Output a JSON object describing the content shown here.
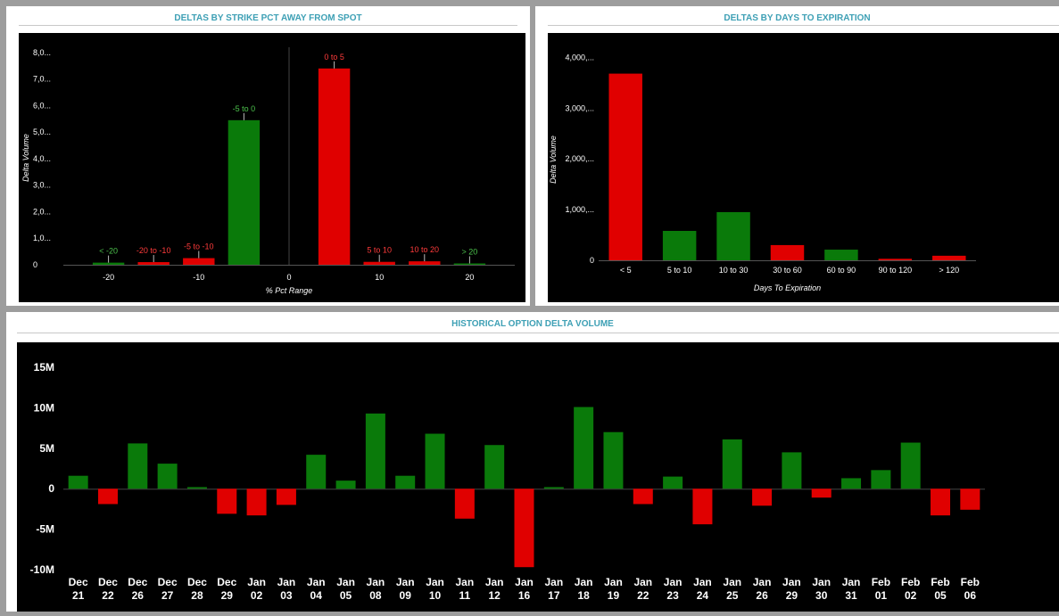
{
  "panels": {
    "strike": {
      "title": "DELTAS BY STRIKE PCT AWAY FROM SPOT"
    },
    "expiry": {
      "title": "DELTAS BY DAYS TO EXPIRATION"
    },
    "history": {
      "title": "HISTORICAL OPTION DELTA VOLUME"
    }
  },
  "colors": {
    "positive": "#0a7a0a",
    "negative": "#e00000",
    "positive_label": "#4cc24c",
    "negative_label": "#ff3b3b",
    "title": "#3ea0b5"
  },
  "chart_data": [
    {
      "type": "bar",
      "title": "DELTAS BY STRIKE PCT AWAY FROM SPOT",
      "xlabel": "% Pct Range",
      "ylabel": "Delta Volume",
      "xlim": [
        -25,
        25
      ],
      "ylim": [
        0,
        8200
      ],
      "y_ticks": [
        0,
        1000,
        2000,
        3000,
        4000,
        5000,
        6000,
        7000,
        8000
      ],
      "y_tick_labels": [
        "0",
        "1,0...",
        "2,0...",
        "3,0...",
        "4,0...",
        "5,0...",
        "6,0...",
        "7,0...",
        "8,0..."
      ],
      "x_ticks": [
        -20,
        -10,
        0,
        10,
        20
      ],
      "x_tick_labels": [
        "-20",
        "-10",
        "0",
        "10",
        "20"
      ],
      "bars": [
        {
          "label": "< -20",
          "center": -20,
          "value": 80,
          "sign": "positive"
        },
        {
          "label": "-20 to -10",
          "center": -15,
          "value": 100,
          "sign": "negative"
        },
        {
          "label": "-5 to -10",
          "center": -10,
          "value": 250,
          "sign": "negative"
        },
        {
          "label": "-5 to 0",
          "center": -5,
          "value": 5450,
          "sign": "positive"
        },
        {
          "label": "0 to 5",
          "center": 5,
          "value": 7400,
          "sign": "negative"
        },
        {
          "label": "5 to 10",
          "center": 10,
          "value": 110,
          "sign": "negative"
        },
        {
          "label": "10 to 20",
          "center": 15,
          "value": 130,
          "sign": "negative"
        },
        {
          "label": "> 20",
          "center": 20,
          "value": 40,
          "sign": "positive"
        }
      ],
      "grid": false
    },
    {
      "type": "bar",
      "title": "DELTAS BY DAYS TO EXPIRATION",
      "xlabel": "Days To Expiration",
      "ylabel": "Delta Volume",
      "ylim": [
        0,
        4200
      ],
      "y_ticks": [
        0,
        1000,
        2000,
        3000,
        4000
      ],
      "y_tick_labels": [
        "0",
        "1,000,...",
        "2,000,...",
        "3,000,...",
        "4,000,..."
      ],
      "categories": [
        "< 5",
        "5 to 10",
        "10 to 30",
        "30 to 60",
        "60 to 90",
        "90 to 120",
        "> 120"
      ],
      "values": [
        3680,
        580,
        950,
        300,
        210,
        30,
        90
      ],
      "signs": [
        "negative",
        "positive",
        "positive",
        "negative",
        "positive",
        "negative",
        "negative"
      ],
      "grid": false
    },
    {
      "type": "bar",
      "title": "HISTORICAL OPTION DELTA VOLUME",
      "ylim": [
        -11,
        17
      ],
      "y_ticks": [
        -10,
        -5,
        0,
        5,
        10,
        15
      ],
      "y_tick_labels": [
        "-10M",
        "-5M",
        "0",
        "5M",
        "10M",
        "15M"
      ],
      "categories": [
        [
          "Dec",
          "21"
        ],
        [
          "Dec",
          "22"
        ],
        [
          "Dec",
          "26"
        ],
        [
          "Dec",
          "27"
        ],
        [
          "Dec",
          "28"
        ],
        [
          "Dec",
          "29"
        ],
        [
          "Jan",
          "02"
        ],
        [
          "Jan",
          "03"
        ],
        [
          "Jan",
          "04"
        ],
        [
          "Jan",
          "05"
        ],
        [
          "Jan",
          "08"
        ],
        [
          "Jan",
          "09"
        ],
        [
          "Jan",
          "10"
        ],
        [
          "Jan",
          "11"
        ],
        [
          "Jan",
          "12"
        ],
        [
          "Jan",
          "16"
        ],
        [
          "Jan",
          "17"
        ],
        [
          "Jan",
          "18"
        ],
        [
          "Jan",
          "19"
        ],
        [
          "Jan",
          "22"
        ],
        [
          "Jan",
          "23"
        ],
        [
          "Jan",
          "24"
        ],
        [
          "Jan",
          "25"
        ],
        [
          "Jan",
          "26"
        ],
        [
          "Jan",
          "29"
        ],
        [
          "Jan",
          "30"
        ],
        [
          "Jan",
          "31"
        ],
        [
          "Feb",
          "01"
        ],
        [
          "Feb",
          "02"
        ],
        [
          "Feb",
          "05"
        ],
        [
          "Feb",
          "06"
        ]
      ],
      "values": [
        1.6,
        -1.9,
        5.6,
        3.1,
        0.2,
        -3.1,
        -3.3,
        -2.0,
        4.2,
        1.0,
        9.3,
        1.6,
        6.8,
        -3.7,
        5.4,
        -9.7,
        0.2,
        10.1,
        7.0,
        -1.9,
        1.5,
        -4.4,
        6.1,
        -2.1,
        4.5,
        -1.1,
        1.3,
        2.3,
        5.7,
        -3.3,
        -2.6
      ],
      "unit": "M",
      "grid": false
    }
  ]
}
